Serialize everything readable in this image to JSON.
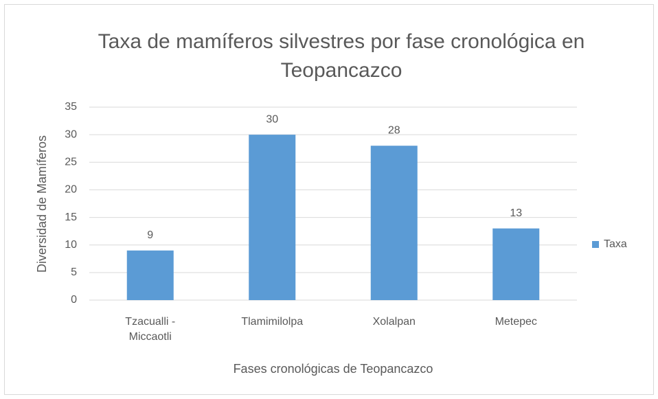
{
  "chart_data": {
    "type": "bar",
    "title": "Taxa de mamíferos silvestres por fase cronológica en Teopancazco",
    "categories": [
      "Tzacualli - Miccaotli",
      "Tlamimilolpa",
      "Xolalpan",
      "Metepec"
    ],
    "series": [
      {
        "name": "Taxa",
        "color": "#5b9bd5",
        "values": [
          9,
          30,
          28,
          13
        ]
      }
    ],
    "xlabel": "Fases cronológicas de Teopancazco",
    "ylabel": "Diversidad de Mamíferos",
    "ylim": [
      0,
      35
    ],
    "yticks": [
      0,
      5,
      10,
      15,
      20,
      25,
      30,
      35
    ],
    "grid": true,
    "legend": "right",
    "data_labels": true
  }
}
